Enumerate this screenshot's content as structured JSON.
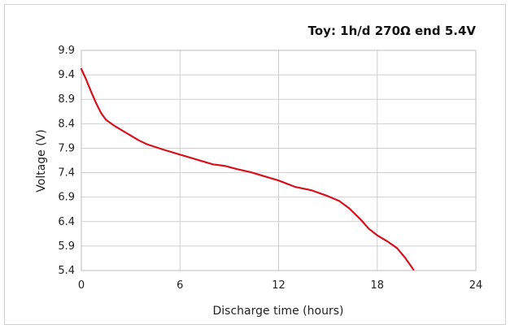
{
  "chart_data": {
    "type": "line",
    "title": "Toy: 1h/d 270Ω end 5.4V",
    "xlabel": "Discharge time (hours)",
    "ylabel": "Voltage (V)",
    "xlim": [
      0,
      24
    ],
    "ylim": [
      5.4,
      9.9
    ],
    "xticks": [
      0,
      6,
      12,
      18,
      24
    ],
    "yticks": [
      5.4,
      5.9,
      6.4,
      6.9,
      7.4,
      7.9,
      8.4,
      8.9,
      9.4,
      9.9
    ],
    "grid": true,
    "series_color": "#d4111c",
    "series": [
      {
        "x": [
          0,
          0.3,
          0.6,
          0.9,
          1.2,
          1.5,
          2.0,
          2.5,
          3.0,
          3.5,
          4.0,
          5.0,
          6.0,
          7.0,
          8.0,
          8.7,
          9.5,
          10.3,
          11.0,
          12.0,
          13.0,
          14.0,
          15.0,
          15.7,
          16.3,
          17.0,
          17.5,
          18.0,
          18.6,
          19.2,
          19.7,
          20.2
        ],
        "y": [
          9.52,
          9.3,
          9.05,
          8.82,
          8.62,
          8.48,
          8.36,
          8.26,
          8.16,
          8.06,
          7.98,
          7.87,
          7.77,
          7.67,
          7.57,
          7.54,
          7.47,
          7.41,
          7.34,
          7.24,
          7.11,
          7.04,
          6.92,
          6.82,
          6.67,
          6.44,
          6.25,
          6.12,
          6.0,
          5.86,
          5.66,
          5.42
        ]
      }
    ]
  }
}
